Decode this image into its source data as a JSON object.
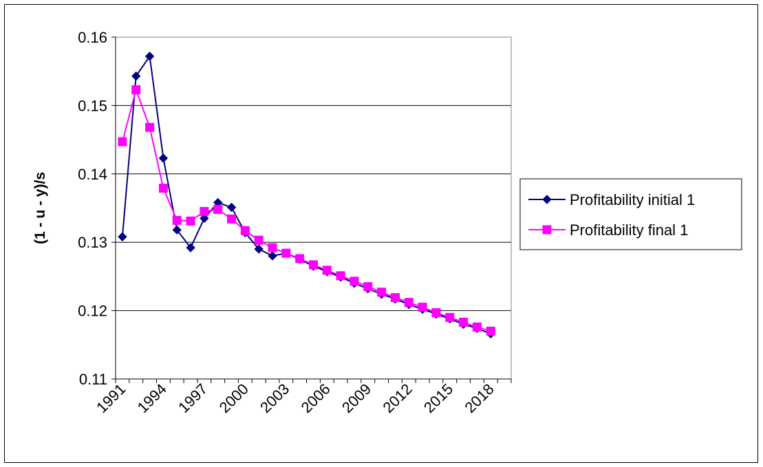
{
  "chart_data": {
    "type": "line",
    "title": "",
    "xlabel": "",
    "ylabel": "(1 - u - y)/s",
    "ylim": [
      0.11,
      0.16
    ],
    "y_ticks": [
      "0.11",
      "0.12",
      "0.13",
      "0.14",
      "0.15",
      "0.16"
    ],
    "x": [
      1991,
      1992,
      1993,
      1994,
      1995,
      1996,
      1997,
      1998,
      1999,
      2000,
      2001,
      2002,
      2003,
      2004,
      2005,
      2006,
      2007,
      2008,
      2009,
      2010,
      2011,
      2012,
      2013,
      2014,
      2015,
      2016,
      2017,
      2018,
      2019
    ],
    "x_tick_labels": [
      "1991",
      "1994",
      "1997",
      "2000",
      "2003",
      "2006",
      "2009",
      "2012",
      "2015",
      "2018"
    ],
    "grid": "horizontal",
    "legend_position": "right",
    "series": [
      {
        "name": "Profitability initial 1",
        "color": "#000080",
        "marker": "diamond",
        "values": [
          0.1308,
          0.1543,
          0.1572,
          0.1423,
          0.1318,
          0.1292,
          0.1335,
          0.1358,
          0.1351,
          0.1314,
          0.129,
          0.128,
          0.1284,
          0.1275,
          0.1265,
          0.1257,
          0.1249,
          0.124,
          0.1232,
          0.1224,
          0.1217,
          0.1209,
          0.1202,
          0.1195,
          0.1188,
          0.118,
          0.1174,
          0.1166,
          null
        ]
      },
      {
        "name": "Profitability final 1",
        "color": "#FF00FF",
        "marker": "square",
        "values": [
          0.1447,
          0.1523,
          0.1468,
          0.1379,
          0.1332,
          0.1331,
          0.1345,
          0.1348,
          0.1334,
          0.1317,
          0.1303,
          0.1292,
          0.1284,
          0.1276,
          0.1267,
          0.1259,
          0.1251,
          0.1243,
          0.1235,
          0.1227,
          0.1219,
          0.1212,
          0.1205,
          0.1197,
          0.119,
          0.1183,
          0.1176,
          0.117,
          null
        ]
      }
    ]
  }
}
